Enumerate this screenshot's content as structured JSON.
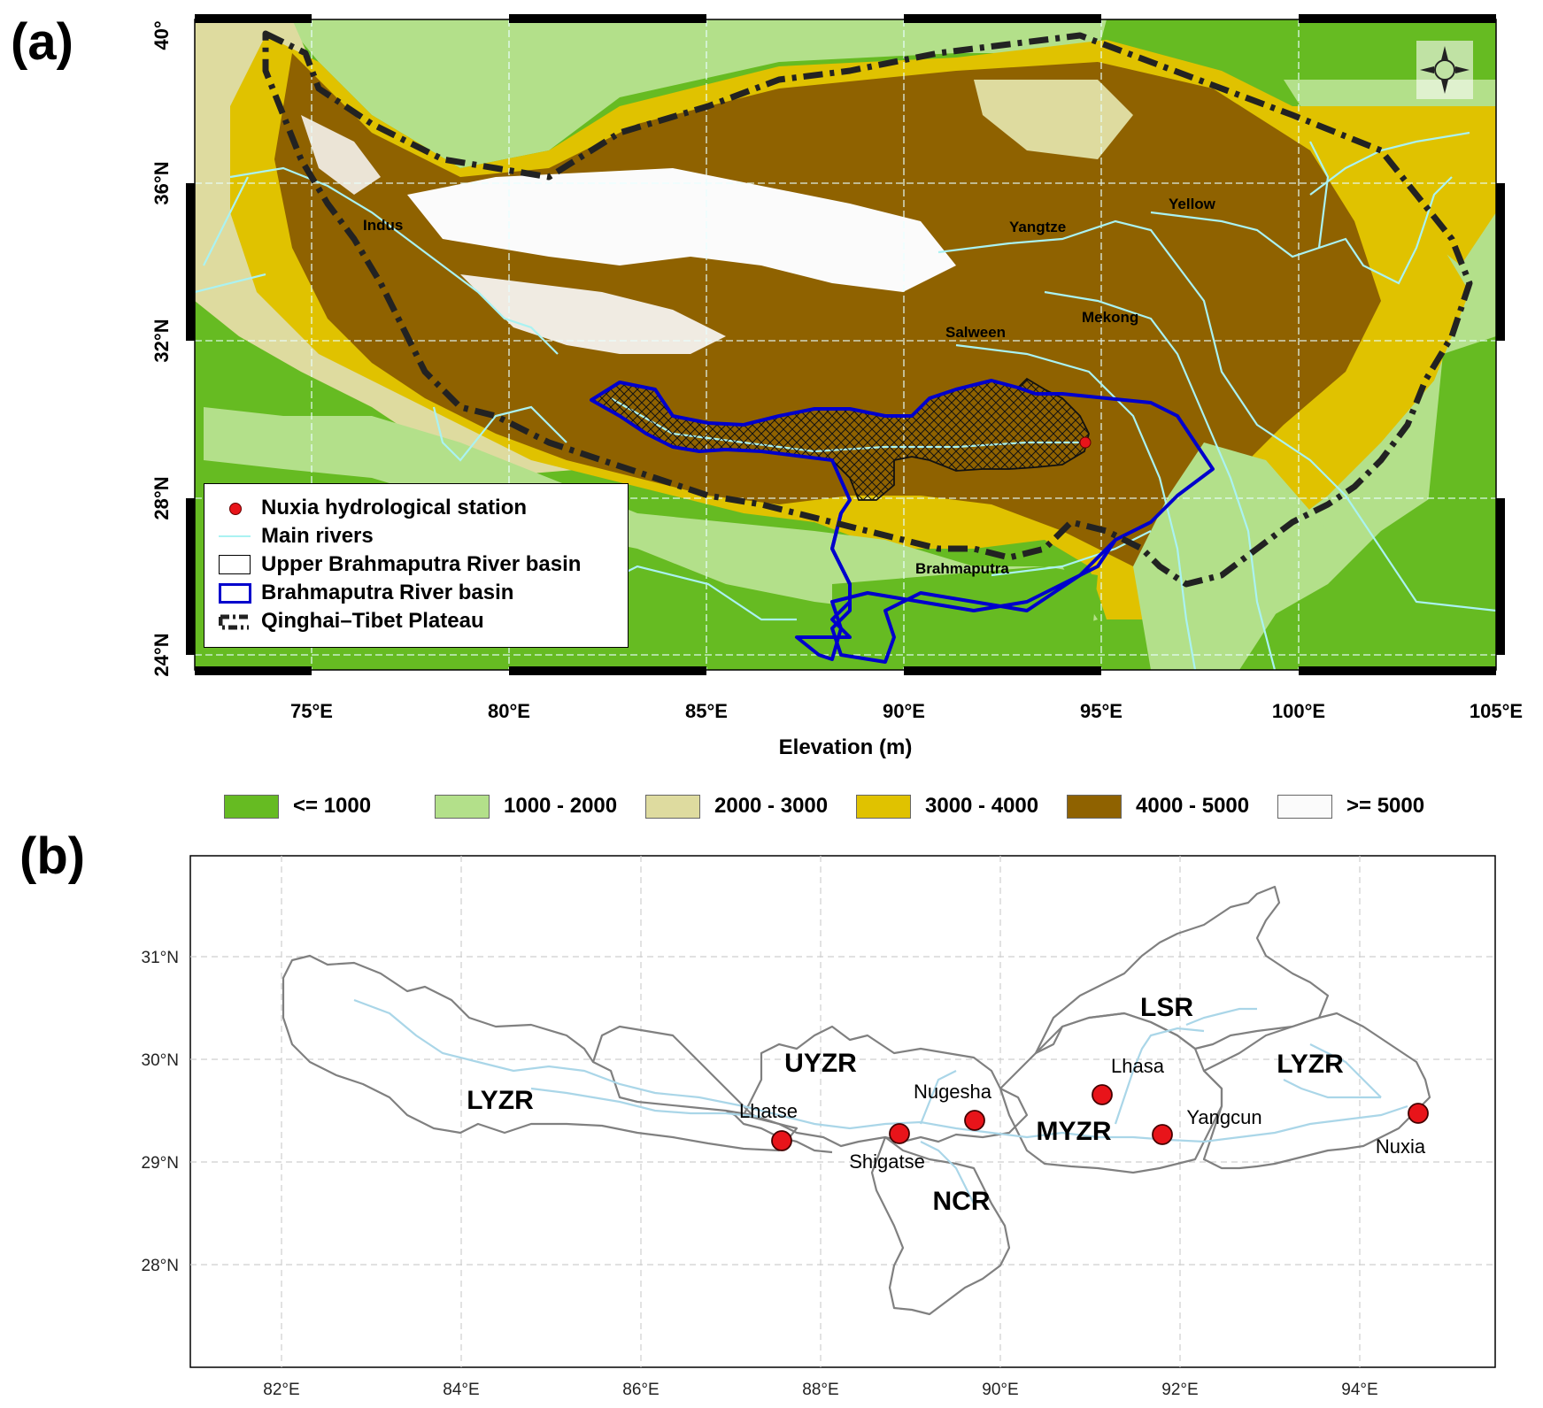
{
  "panel_a": {
    "label": "(a)",
    "x_ticks": [
      "75°E",
      "80°E",
      "85°E",
      "90°E",
      "95°E",
      "100°E",
      "105°E"
    ],
    "y_ticks": [
      "24°N",
      "28°N",
      "32°N",
      "36°N",
      "40°"
    ],
    "xlabel": "Elevation (m)",
    "rivers": [
      "Indus",
      "Yangtze",
      "Yellow",
      "Mekong",
      "Salween",
      "Brahmaputra"
    ],
    "station_label": "Nuxia hydrological station",
    "legend": [
      {
        "label": "Nuxia hydrological station",
        "symbol": "red-dot"
      },
      {
        "label": "Main rivers",
        "symbol": "cyan-line"
      },
      {
        "label": "Upper Brahmaputra River basin",
        "symbol": "black-box"
      },
      {
        "label": "Brahmaputra River basin",
        "symbol": "blue-box"
      },
      {
        "label": "Qinghai–Tibet Plateau",
        "symbol": "dash-dot-line"
      }
    ],
    "elevation_classes": [
      {
        "label": "<= 1000",
        "color": "#66bb22"
      },
      {
        "label": "1000 - 2000",
        "color": "#b3e08a"
      },
      {
        "label": "2000 - 3000",
        "color": "#dedb9f"
      },
      {
        "label": "3000 - 4000",
        "color": "#e0c200"
      },
      {
        "label": "4000 - 5000",
        "color": "#8f6200"
      },
      {
        "label": ">= 5000",
        "color": "#fbfbfb"
      }
    ]
  },
  "panel_b": {
    "label": "(b)",
    "x_ticks": [
      "82°E",
      "84°E",
      "86°E",
      "88°E",
      "90°E",
      "92°E",
      "94°E"
    ],
    "y_ticks": [
      "31°N",
      "30°N",
      "29°N",
      "28°N"
    ],
    "regions": [
      "LYZR",
      "UYZR",
      "LSR",
      "LYZR",
      "MYZR",
      "NCR"
    ],
    "stations": [
      {
        "name": "Lhatse",
        "lon": 87.55,
        "lat": 29.2
      },
      {
        "name": "Shigatse",
        "lon": 88.88,
        "lat": 29.27
      },
      {
        "name": "Nugesha",
        "lon": 89.72,
        "lat": 29.4
      },
      {
        "name": "Lhasa",
        "lon": 91.13,
        "lat": 29.65
      },
      {
        "name": "Yangcun",
        "lon": 91.82,
        "lat": 29.26
      },
      {
        "name": "Nuxia",
        "lon": 94.65,
        "lat": 29.47
      }
    ]
  },
  "colors": {
    "station_red": "#e8141a",
    "river_cyan": "#aaf2f2",
    "river_blue_b": "#aad6e8",
    "basin_blue": "#0000cc",
    "plateau_black": "#222222",
    "subbasin_gray": "#808080"
  }
}
